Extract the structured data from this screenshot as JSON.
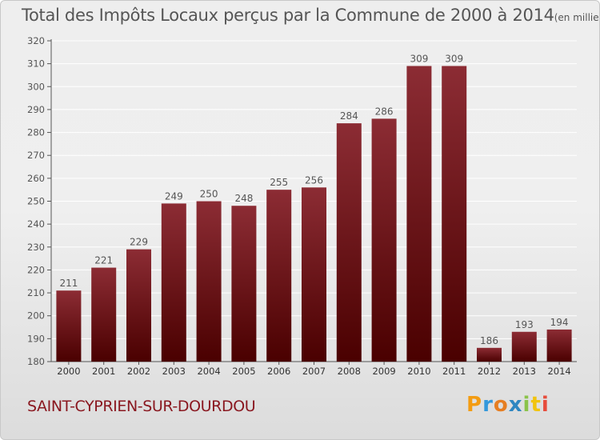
{
  "header": {
    "title": "Total des Impôts Locaux perçus par la Commune de 2000 à 2014",
    "unit": "(en milliers d'€)"
  },
  "commune": "SAINT-CYPRIEN-SUR-DOURDOU",
  "logo": {
    "letters": [
      "P",
      "r",
      "o",
      "x",
      "i",
      "t",
      "i"
    ],
    "colors": [
      "#f39c12",
      "#3498db",
      "#e67e22",
      "#2e86c1",
      "#8bc34a",
      "#f1c40f",
      "#e74c3c"
    ]
  },
  "colors": {
    "bar_top": "#8c2c34",
    "bar_bottom": "#4a0000",
    "grid": "#ffffff",
    "text": "#555555"
  },
  "chart_data": {
    "type": "bar",
    "title": "Total des Impôts Locaux perçus par la Commune de 2000 à 2014",
    "ylabel": "en milliers d'€",
    "xlabel": "",
    "categories": [
      "2000",
      "2001",
      "2002",
      "2003",
      "2004",
      "2005",
      "2006",
      "2007",
      "2008",
      "2009",
      "2010",
      "2011",
      "2012",
      "2013",
      "2014"
    ],
    "values": [
      211,
      221,
      229,
      249,
      250,
      248,
      255,
      256,
      284,
      286,
      309,
      309,
      186,
      193,
      194
    ],
    "ylim": [
      180,
      320
    ],
    "yticks": [
      180,
      190,
      200,
      210,
      220,
      230,
      240,
      250,
      260,
      270,
      280,
      290,
      300,
      310,
      320
    ],
    "grid": true
  }
}
